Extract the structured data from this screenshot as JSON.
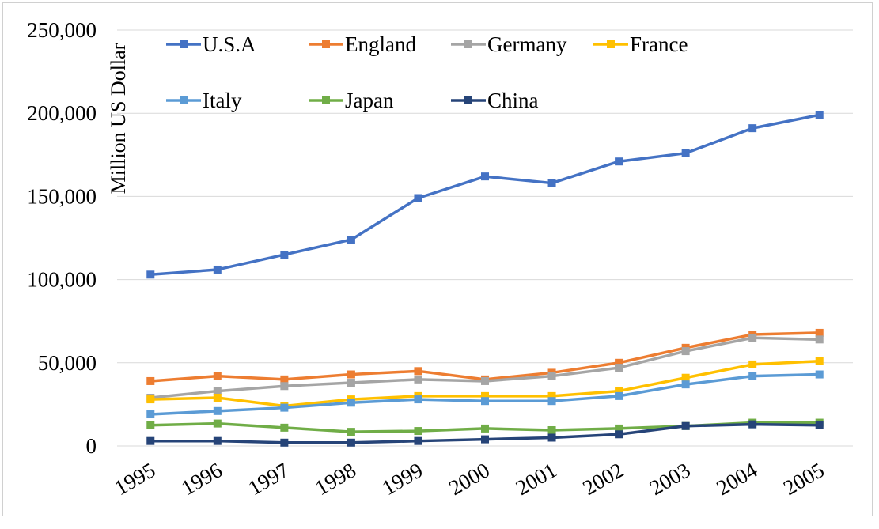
{
  "chart_data": {
    "type": "line",
    "title": "",
    "xlabel": "",
    "ylabel": "Million US Dollar",
    "ylim": [
      0,
      250000
    ],
    "yticks": [
      0,
      50000,
      100000,
      150000,
      200000,
      250000
    ],
    "ytick_labels": [
      "0",
      "50,000",
      "100,000",
      "150,000",
      "200,000",
      "250,000"
    ],
    "grid": true,
    "legend_position": "top",
    "categories": [
      "1995",
      "1996",
      "1997",
      "1998",
      "1999",
      "2000",
      "2001",
      "2002",
      "2003",
      "2004",
      "2005"
    ],
    "series": [
      {
        "name": "U.S.A",
        "color": "#4472c4",
        "values": [
          103000,
          106000,
          115000,
          124000,
          149000,
          162000,
          158000,
          171000,
          176000,
          191000,
          199000
        ]
      },
      {
        "name": "England",
        "color": "#ed7d31",
        "values": [
          39000,
          42000,
          40000,
          43000,
          45000,
          40000,
          44000,
          50000,
          59000,
          67000,
          68000
        ]
      },
      {
        "name": "Germany",
        "color": "#a5a5a5",
        "values": [
          29000,
          33000,
          36000,
          38000,
          40000,
          39000,
          42000,
          47000,
          57000,
          65000,
          64000
        ]
      },
      {
        "name": "France",
        "color": "#ffc000",
        "values": [
          28000,
          29000,
          24000,
          28000,
          30000,
          30000,
          30000,
          33000,
          41000,
          49000,
          51000
        ]
      },
      {
        "name": "Italy",
        "color": "#5b9bd5",
        "values": [
          19000,
          21000,
          23000,
          26000,
          28000,
          27000,
          27000,
          30000,
          37000,
          42000,
          43000
        ]
      },
      {
        "name": "Japan",
        "color": "#70ad47",
        "values": [
          12500,
          13500,
          11000,
          8500,
          9000,
          10500,
          9500,
          10500,
          12000,
          14000,
          14000
        ]
      },
      {
        "name": "China",
        "color": "#264478",
        "values": [
          3000,
          3000,
          2000,
          2000,
          3000,
          4000,
          5000,
          7000,
          12000,
          13000,
          12500
        ]
      }
    ]
  }
}
